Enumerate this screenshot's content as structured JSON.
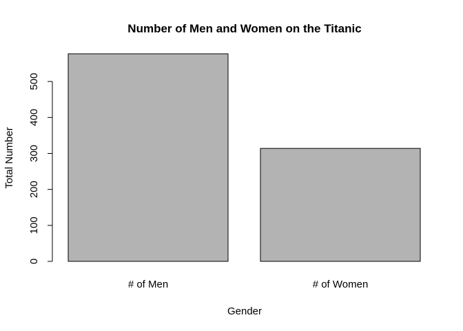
{
  "chart_data": {
    "type": "bar",
    "title": "Number of Men and Women on the Titanic",
    "xlabel": "Gender",
    "ylabel": "Total Number",
    "categories": [
      "# of Men",
      "# of Women"
    ],
    "values": [
      577,
      314
    ],
    "ylim": [
      0,
      577
    ],
    "yticks": [
      0,
      100,
      200,
      300,
      400,
      500
    ],
    "bar_color": "#b3b3b3",
    "grid": false,
    "legend": "none"
  }
}
